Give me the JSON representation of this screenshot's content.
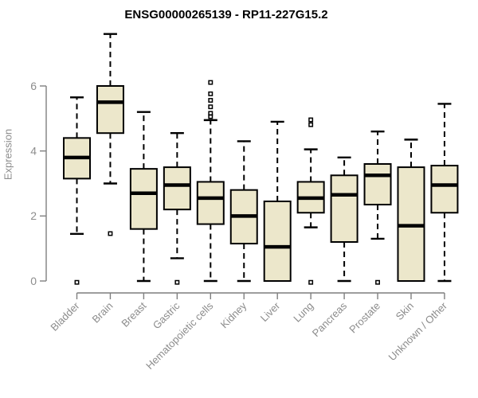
{
  "chart_data": {
    "type": "boxplot",
    "title": "ENSG00000265139 - RP11-227G15.2",
    "ylabel": "Expression",
    "xlabel": "",
    "yticks": [
      0,
      2,
      4,
      6
    ],
    "ylim": [
      0,
      7.8
    ],
    "grid": false,
    "legend": "none",
    "categories": [
      "Bladder",
      "Brain",
      "Breast",
      "Gastric",
      "Hematopoietic cells",
      "Kidney",
      "Liver",
      "Lung",
      "Pancreas",
      "Prostate",
      "Skin",
      "Unknown / Other"
    ],
    "series": [
      {
        "name": "Bladder",
        "whisker_low": 1.45,
        "q1": 3.15,
        "median": 3.8,
        "q3": 4.4,
        "whisker_high": 5.65,
        "outliers": [
          0
        ]
      },
      {
        "name": "Brain",
        "whisker_low": 3.0,
        "q1": 4.55,
        "median": 5.5,
        "q3": 6.0,
        "whisker_high": 7.6,
        "outliers": [
          1.5
        ]
      },
      {
        "name": "Breast",
        "whisker_low": 0,
        "q1": 1.6,
        "median": 2.7,
        "q3": 3.45,
        "whisker_high": 5.2,
        "outliers": []
      },
      {
        "name": "Gastric",
        "whisker_low": 0.7,
        "q1": 2.2,
        "median": 2.95,
        "q3": 3.5,
        "whisker_high": 4.55,
        "outliers": [
          0
        ]
      },
      {
        "name": "Hematopoietic cells",
        "whisker_low": 0,
        "q1": 1.75,
        "median": 2.55,
        "q3": 3.05,
        "whisker_high": 4.95,
        "outliers": [
          6.15,
          5.8,
          5.6,
          5.4,
          5.2,
          5.1
        ]
      },
      {
        "name": "Kidney",
        "whisker_low": 0,
        "q1": 1.15,
        "median": 2.0,
        "q3": 2.8,
        "whisker_high": 4.3,
        "outliers": []
      },
      {
        "name": "Liver",
        "whisker_low": 0,
        "q1": 0,
        "median": 1.05,
        "q3": 2.45,
        "whisker_high": 4.9,
        "outliers": []
      },
      {
        "name": "Lung",
        "whisker_low": 1.65,
        "q1": 2.1,
        "median": 2.55,
        "q3": 3.05,
        "whisker_high": 4.05,
        "outliers": [
          5.0,
          4.85,
          0
        ]
      },
      {
        "name": "Pancreas",
        "whisker_low": 0,
        "q1": 1.2,
        "median": 2.65,
        "q3": 3.25,
        "whisker_high": 3.8,
        "outliers": []
      },
      {
        "name": "Prostate",
        "whisker_low": 1.3,
        "q1": 2.35,
        "median": 3.25,
        "q3": 3.6,
        "whisker_high": 4.6,
        "outliers": [
          0
        ]
      },
      {
        "name": "Skin",
        "whisker_low": 0,
        "q1": 0,
        "median": 1.7,
        "q3": 3.5,
        "whisker_high": 4.35,
        "outliers": []
      },
      {
        "name": "Unknown / Other",
        "whisker_low": 0,
        "q1": 2.1,
        "median": 2.95,
        "q3": 3.55,
        "whisker_high": 5.45,
        "outliers": []
      }
    ],
    "colors": {
      "box_fill": "#ECE7CB",
      "box_stroke": "#000000",
      "median": "#000000",
      "whisker": "#000000",
      "outlier": "#000000",
      "axis": "#7F7F7F",
      "tick_label": "#8C8C8C",
      "title": "#000000",
      "background": "#FFFFFF"
    }
  }
}
